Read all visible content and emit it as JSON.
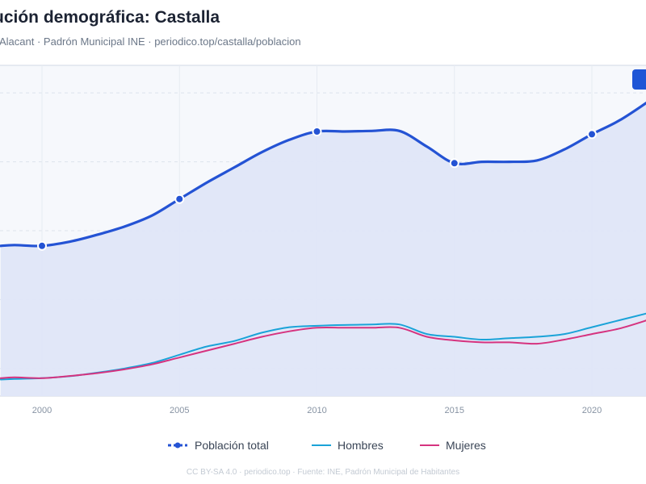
{
  "header": {
    "title": "ución demográfica: Castalla",
    "subtitle": "Alacant · Padrón Municipal INE · periodico.top/castalla/poblacion"
  },
  "footer": {
    "text": "CC BY-SA 4.0 · periodico.top · Fuente: INE, Padrón Municipal de Habitantes"
  },
  "colors": {
    "total": "#2453d4",
    "hombres": "#1aa3d8",
    "mujeres": "#d6337f",
    "area_fill": "#dfe6f8",
    "plot_bg": "#f6f8fc",
    "grid": "#dde3ec"
  },
  "chart_data": {
    "type": "line",
    "x_ticks": [
      2000,
      2005,
      2010,
      2015,
      2020
    ],
    "xlim": [
      1998.5,
      2022
    ],
    "ylim": [
      0,
      12000
    ],
    "grid": true,
    "legend_position": "bottom",
    "series": [
      {
        "name": "Población total",
        "key": "total",
        "marker_years": [
          2000,
          2005,
          2010,
          2015,
          2020
        ],
        "x": [
          1998.5,
          1999,
          2000,
          2001,
          2002,
          2003,
          2004,
          2005,
          2006,
          2007,
          2008,
          2009,
          2010,
          2011,
          2012,
          2013,
          2014,
          2015,
          2016,
          2017,
          2018,
          2019,
          2020,
          2021,
          2022
        ],
        "values": [
          5450,
          5480,
          5450,
          5600,
          5850,
          6150,
          6550,
          7150,
          7750,
          8300,
          8850,
          9300,
          9600,
          9600,
          9620,
          9620,
          9050,
          8450,
          8500,
          8500,
          8550,
          8950,
          9500,
          10000,
          10650
        ]
      },
      {
        "name": "Hombres",
        "key": "hombres",
        "x": [
          1998.5,
          1999,
          2000,
          2001,
          2002,
          2003,
          2004,
          2005,
          2006,
          2007,
          2008,
          2009,
          2010,
          2011,
          2012,
          2013,
          2014,
          2015,
          2016,
          2017,
          2018,
          2019,
          2020,
          2021,
          2022
        ],
        "values": [
          600,
          620,
          650,
          720,
          850,
          1000,
          1200,
          1500,
          1800,
          2000,
          2300,
          2500,
          2550,
          2580,
          2600,
          2600,
          2250,
          2150,
          2050,
          2100,
          2150,
          2250,
          2500,
          2750,
          3000
        ]
      },
      {
        "name": "Mujeres",
        "key": "mujeres",
        "x": [
          1998.5,
          1999,
          2000,
          2001,
          2002,
          2003,
          2004,
          2005,
          2006,
          2007,
          2008,
          2009,
          2010,
          2011,
          2012,
          2013,
          2014,
          2015,
          2016,
          2017,
          2018,
          2019,
          2020,
          2021,
          2022
        ],
        "values": [
          650,
          680,
          650,
          730,
          830,
          970,
          1150,
          1400,
          1650,
          1900,
          2150,
          2350,
          2480,
          2480,
          2480,
          2480,
          2150,
          2020,
          1950,
          1950,
          1900,
          2050,
          2250,
          2450,
          2750
        ]
      }
    ]
  }
}
